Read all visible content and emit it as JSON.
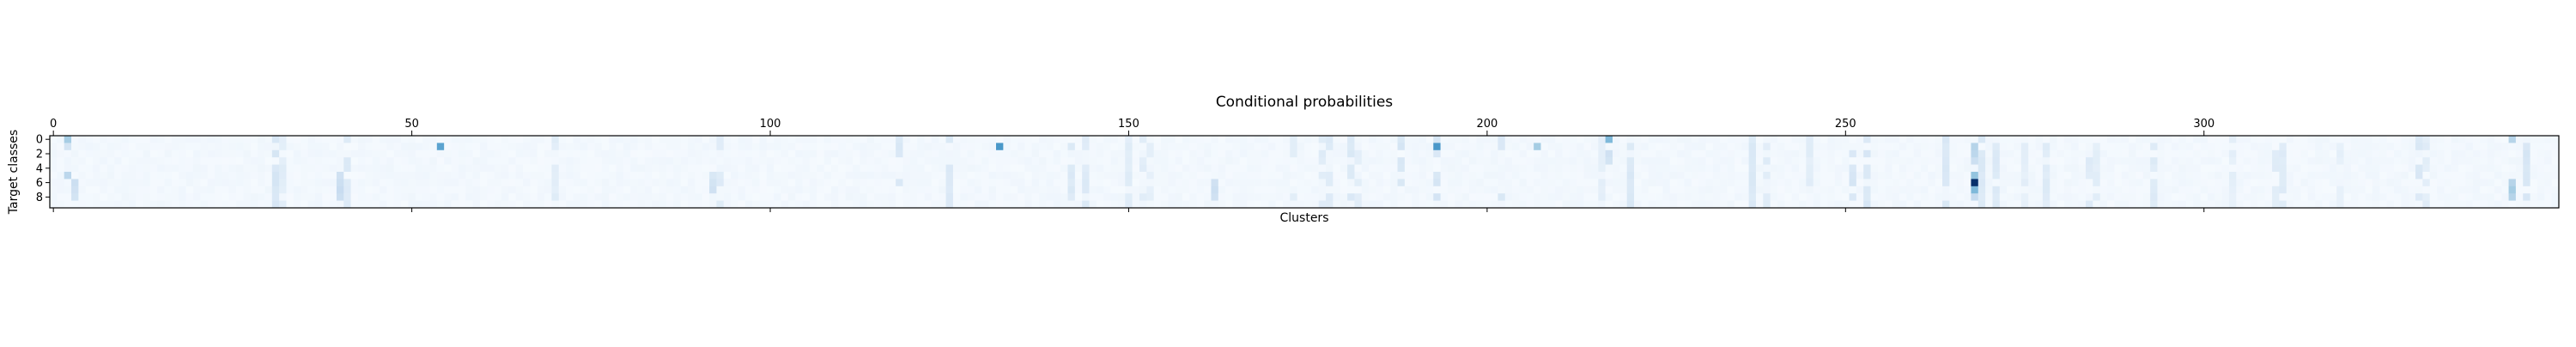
{
  "chart_data": {
    "type": "heatmap",
    "title": "Conditional probabilities",
    "xlabel": "Clusters",
    "ylabel": "Target classes",
    "x_ticks": [
      0,
      50,
      100,
      150,
      200,
      250,
      300
    ],
    "y_ticks": [
      0,
      2,
      4,
      6,
      8
    ],
    "n_clusters": 350,
    "n_classes": 10,
    "x_range": [
      0,
      349
    ],
    "y_range": [
      0,
      9
    ],
    "x_tick_position": "top",
    "grid": false,
    "colormap": "Blues",
    "color_min": "#f7fbff",
    "color_max": "#08306b",
    "value_range": [
      0,
      1
    ],
    "note": "values approximated from visual intensity",
    "highlights": [
      {
        "cluster": 2,
        "class": 0,
        "value": 0.35
      },
      {
        "cluster": 2,
        "class": 1,
        "value": 0.18
      },
      {
        "cluster": 2,
        "class": 5,
        "value": 0.28
      },
      {
        "cluster": 3,
        "class": 6,
        "value": 0.22
      },
      {
        "cluster": 3,
        "class": 7,
        "value": 0.2
      },
      {
        "cluster": 3,
        "class": 8,
        "value": 0.18
      },
      {
        "cluster": 40,
        "class": 5,
        "value": 0.2
      },
      {
        "cluster": 40,
        "class": 6,
        "value": 0.22
      },
      {
        "cluster": 40,
        "class": 7,
        "value": 0.24
      },
      {
        "cluster": 40,
        "class": 8,
        "value": 0.22
      },
      {
        "cluster": 54,
        "class": 1,
        "value": 0.55
      },
      {
        "cluster": 92,
        "class": 5,
        "value": 0.15
      },
      {
        "cluster": 92,
        "class": 6,
        "value": 0.18
      },
      {
        "cluster": 92,
        "class": 7,
        "value": 0.2
      },
      {
        "cluster": 132,
        "class": 1,
        "value": 0.6
      },
      {
        "cluster": 162,
        "class": 6,
        "value": 0.2
      },
      {
        "cluster": 162,
        "class": 7,
        "value": 0.22
      },
      {
        "cluster": 162,
        "class": 8,
        "value": 0.2
      },
      {
        "cluster": 193,
        "class": 1,
        "value": 0.6
      },
      {
        "cluster": 207,
        "class": 1,
        "value": 0.35
      },
      {
        "cluster": 217,
        "class": 0,
        "value": 0.45
      },
      {
        "cluster": 217,
        "class": 2,
        "value": 0.2
      },
      {
        "cluster": 217,
        "class": 3,
        "value": 0.18
      },
      {
        "cluster": 268,
        "class": 1,
        "value": 0.3
      },
      {
        "cluster": 268,
        "class": 2,
        "value": 0.28
      },
      {
        "cluster": 268,
        "class": 3,
        "value": 0.22
      },
      {
        "cluster": 268,
        "class": 5,
        "value": 0.4
      },
      {
        "cluster": 268,
        "class": 6,
        "value": 1.0
      },
      {
        "cluster": 268,
        "class": 7,
        "value": 0.45
      },
      {
        "cluster": 268,
        "class": 8,
        "value": 0.25
      },
      {
        "cluster": 343,
        "class": 0,
        "value": 0.3
      },
      {
        "cluster": 343,
        "class": 6,
        "value": 0.3
      },
      {
        "cluster": 343,
        "class": 7,
        "value": 0.35
      },
      {
        "cluster": 343,
        "class": 8,
        "value": 0.3
      }
    ]
  }
}
